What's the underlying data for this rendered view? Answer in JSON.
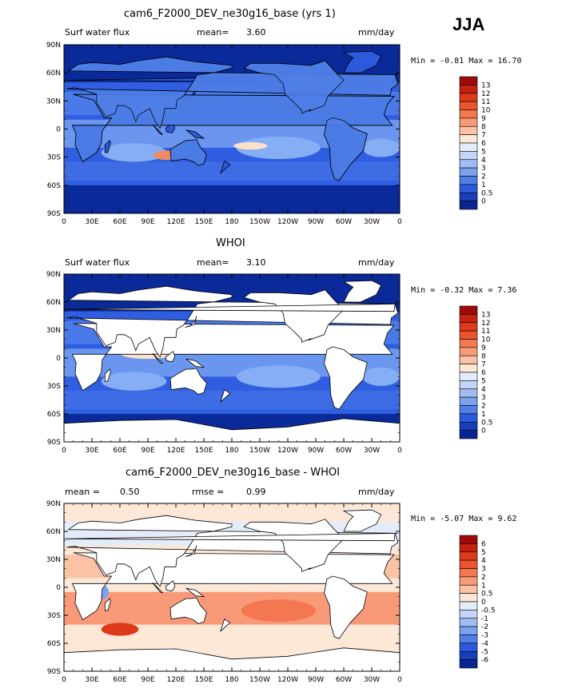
{
  "season": "JJA",
  "units": "mm/day",
  "lat_labels": [
    "90N",
    "60N",
    "30N",
    "0",
    "30S",
    "60S",
    "90S"
  ],
  "lon_labels": [
    "0",
    "30E",
    "60E",
    "90E",
    "120E",
    "150E",
    "180",
    "150W",
    "120W",
    "90W",
    "60W",
    "30W",
    "0"
  ],
  "colors": {
    "ocean_deep": "#0a2a9a",
    "ocean_mid": "#2f5fe0",
    "ocean_light": "#86aef4",
    "land": "#ffffff",
    "coast": "#000000"
  },
  "panels": [
    {
      "title": "cam6_F2000_DEV_ne30g16_base (yrs 1)",
      "left_label": "Surf water flux",
      "center_label": "mean=",
      "center_value": "3.60",
      "units": "mm/day",
      "minmax": "Min =  -0.81 Max =  16.70",
      "colorbar_labels": [
        "13",
        "12",
        "11",
        "10",
        "9",
        "8",
        "7",
        "6",
        "5",
        "4",
        "3",
        "2",
        "1",
        "0.5",
        "0"
      ],
      "colorbar_colors": [
        "#9e0a0a",
        "#c4210f",
        "#dc3a19",
        "#ec5430",
        "#f37852",
        "#f89a78",
        "#fbc2a6",
        "#fde8d8",
        "#e4ecfb",
        "#c4d6f7",
        "#9fbcf3",
        "#7ba1ef",
        "#4f7fe7",
        "#2b5adc",
        "#163fb8",
        "#0a2590"
      ]
    },
    {
      "title": "WHOI",
      "left_label": "Surf water flux",
      "center_label": "mean=",
      "center_value": "3.10",
      "units": "mm/day",
      "minmax": "Min =  -0.32 Max =   7.36",
      "colorbar_labels": [
        "13",
        "12",
        "11",
        "10",
        "9",
        "8",
        "7",
        "6",
        "5",
        "4",
        "3",
        "2",
        "1",
        "0.5",
        "0"
      ],
      "colorbar_colors": [
        "#9e0a0a",
        "#c4210f",
        "#dc3a19",
        "#ec5430",
        "#f37852",
        "#f89a78",
        "#fbc2a6",
        "#fde8d8",
        "#e4ecfb",
        "#c4d6f7",
        "#9fbcf3",
        "#7ba1ef",
        "#4f7fe7",
        "#2b5adc",
        "#163fb8",
        "#0a2590"
      ]
    },
    {
      "title": "cam6_F2000_DEV_ne30g16_base - WHOI",
      "left_label": "mean =",
      "left_value": "0.50",
      "center_label": "rmse =",
      "center_value": "0.99",
      "units": "mm/day",
      "minmax": "Min =  -5.07 Max =   9.62",
      "colorbar_labels": [
        "6",
        "5",
        "4",
        "3",
        "2",
        "1",
        "0.5",
        "0",
        "-0.5",
        "-1",
        "-2",
        "-3",
        "-4",
        "-5",
        "-6"
      ],
      "colorbar_colors": [
        "#9e0a0a",
        "#c4210f",
        "#dc3a19",
        "#ec5430",
        "#f37852",
        "#f89a78",
        "#fbc2a6",
        "#fde8d8",
        "#e4ecfb",
        "#c4d6f7",
        "#9fbcf3",
        "#7ba1ef",
        "#4f7fe7",
        "#2b5adc",
        "#163fb8",
        "#0a2590"
      ]
    }
  ]
}
